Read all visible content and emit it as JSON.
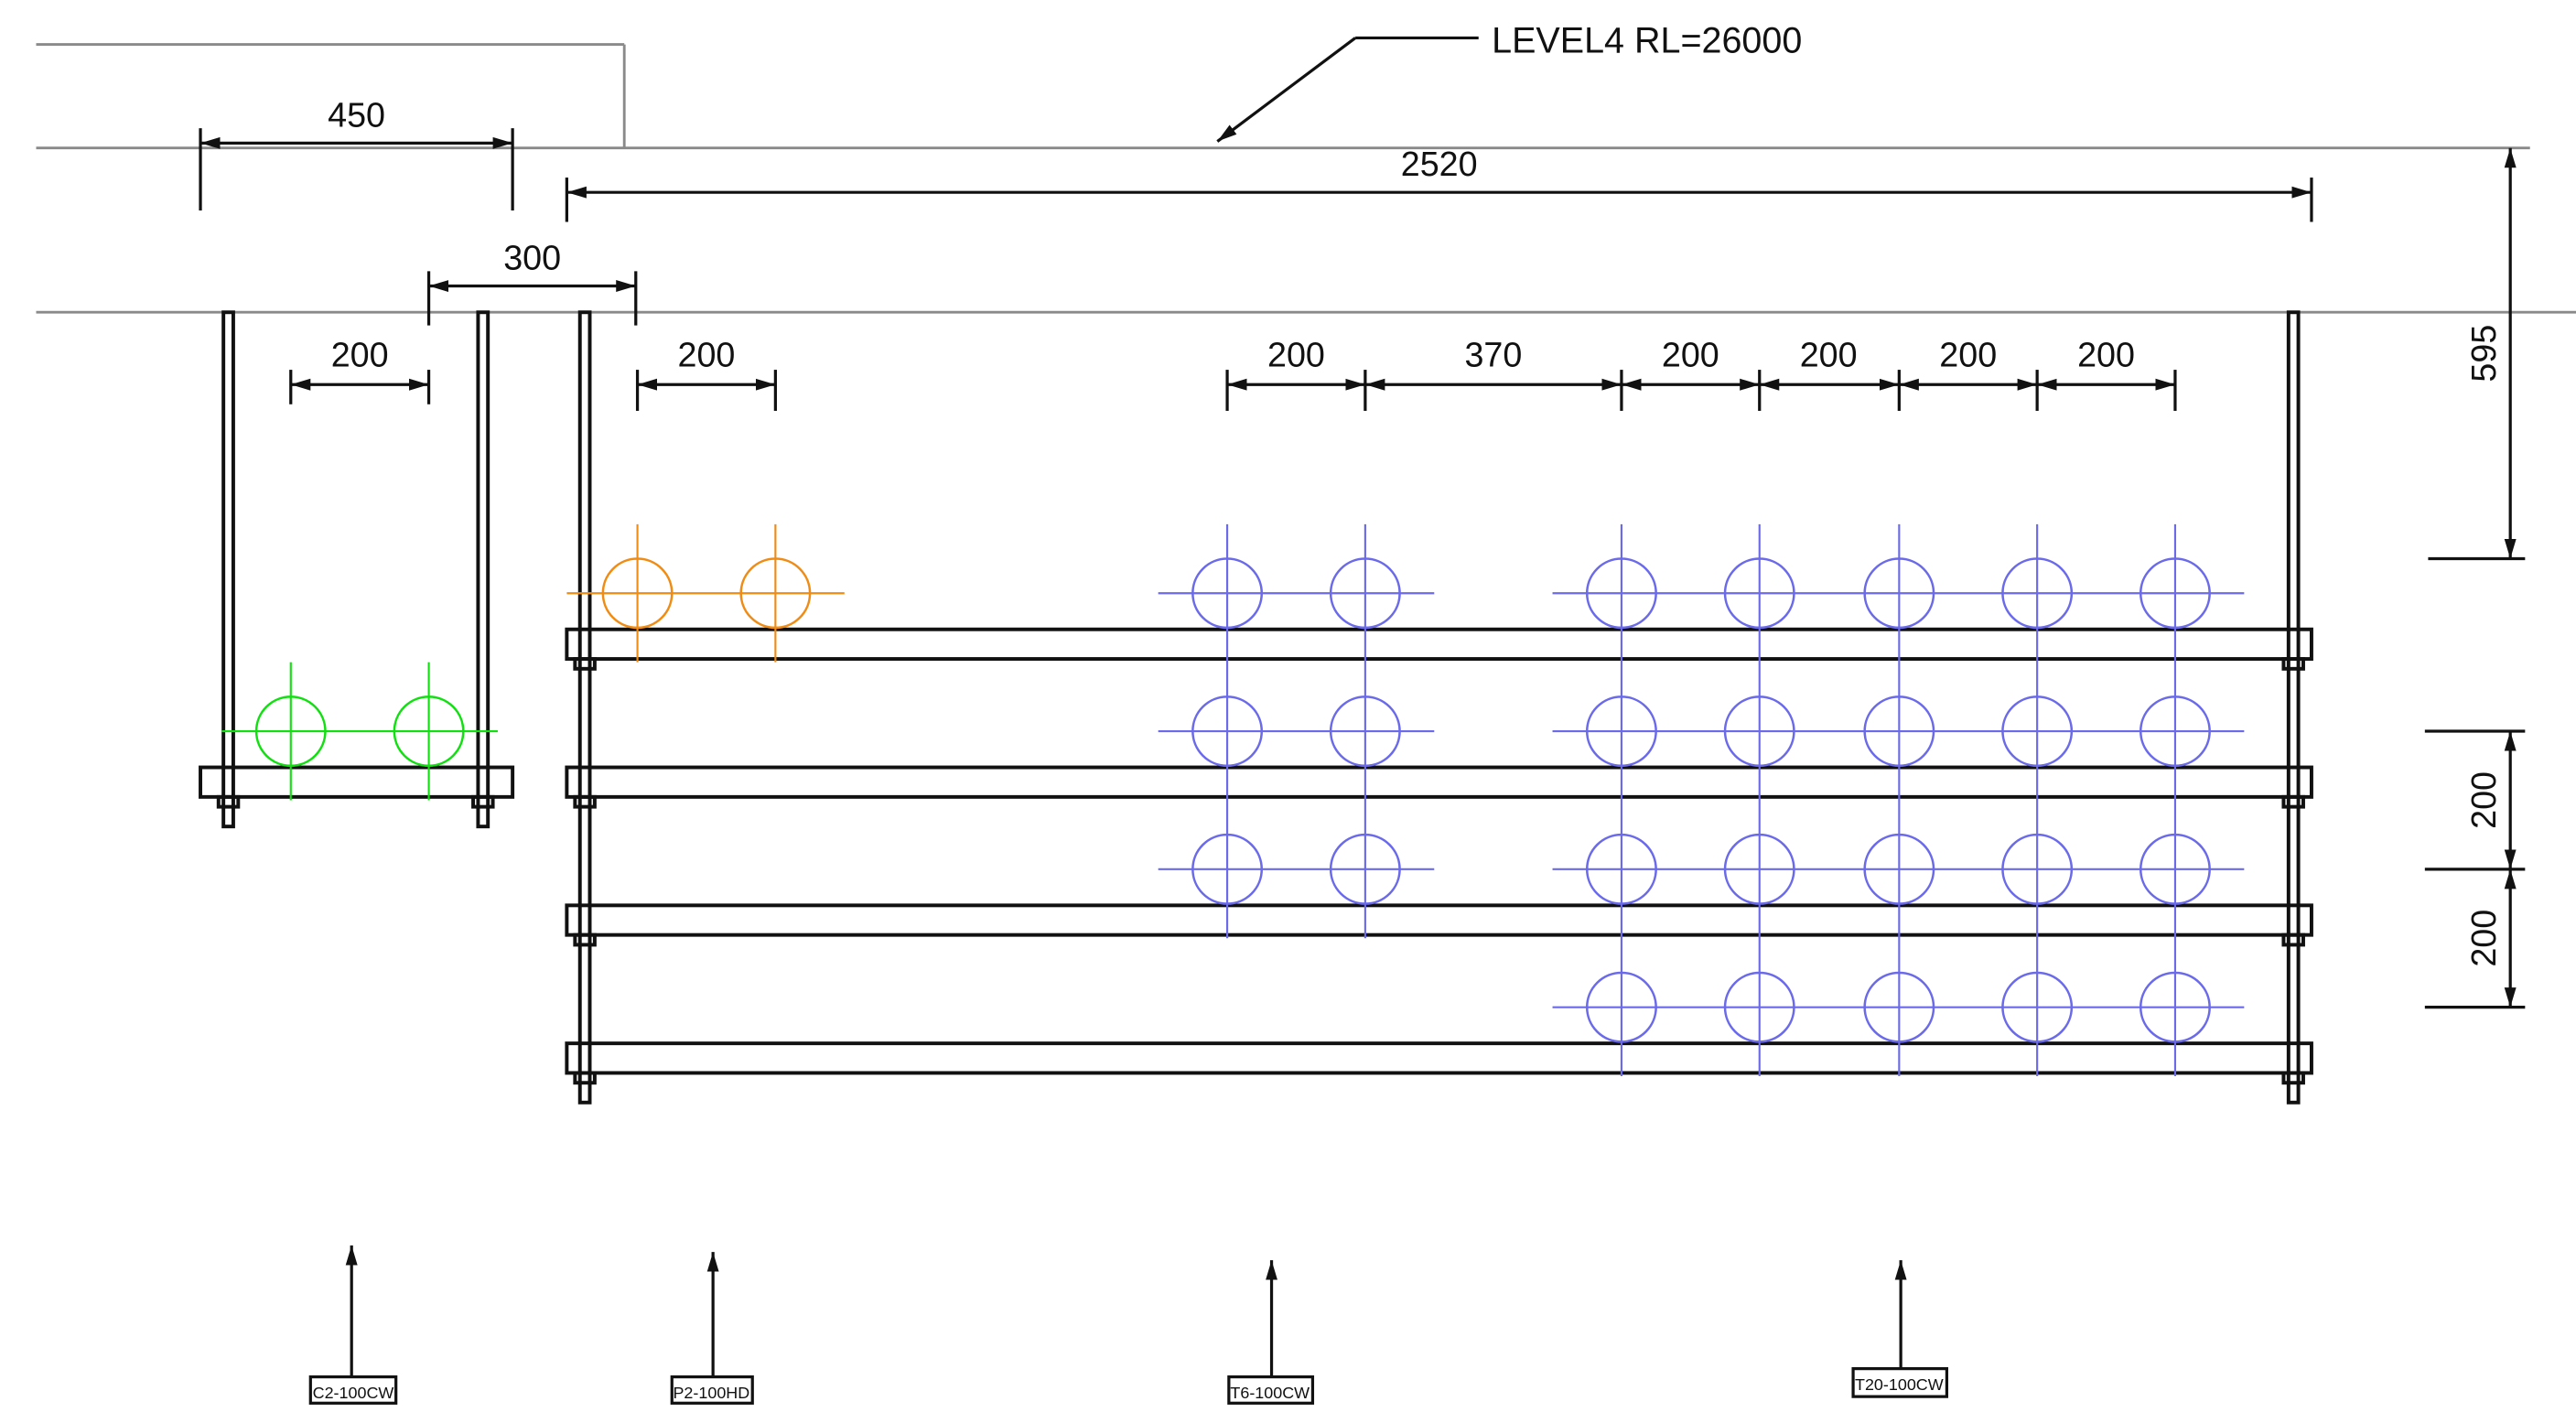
{
  "level_label": "LEVEL4 RL=26000",
  "dimensions": {
    "d450": "450",
    "d2520": "2520",
    "d300": "300",
    "d595": "595",
    "spacing_c2": "200",
    "spacing_p2": "200",
    "spacing_t6": "200",
    "gap": "370",
    "spacing_t20_1": "200",
    "spacing_t20_2": "200",
    "spacing_t20_3": "200",
    "spacing_t20_4": "200",
    "tier_1": "200",
    "tier_2": "200"
  },
  "tags": {
    "c2": "C2-100CW",
    "p2": "P2-100HD",
    "t6": "T6-100CW",
    "t20": "T20-100CW"
  },
  "colors": {
    "c2": "#10e010",
    "p2": "#f08c14",
    "t6": "#6a6aea",
    "t20": "#6a6aea"
  }
}
